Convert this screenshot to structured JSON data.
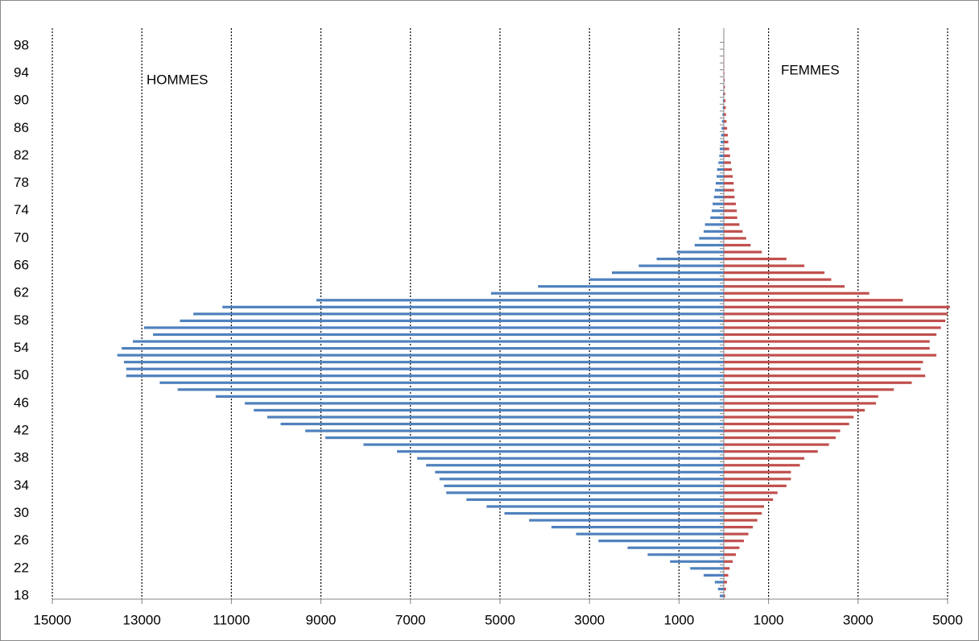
{
  "chart_data": {
    "type": "pyramid",
    "categories": [
      18,
      null,
      null,
      null,
      22,
      null,
      null,
      null,
      26,
      null,
      null,
      null,
      30,
      null,
      null,
      null,
      34,
      null,
      null,
      null,
      38,
      null,
      null,
      null,
      42,
      null,
      null,
      null,
      46,
      null,
      null,
      null,
      50,
      null,
      null,
      null,
      54,
      null,
      null,
      null,
      58,
      null,
      null,
      null,
      62,
      null,
      null,
      null,
      66,
      null,
      null,
      null,
      70,
      null,
      null,
      null,
      74,
      null,
      null,
      null,
      78,
      null,
      null,
      null,
      82,
      null,
      null,
      null,
      86,
      null,
      null,
      null,
      90,
      null,
      null,
      null,
      94,
      null,
      null,
      null,
      98,
      null
    ],
    "series": [
      {
        "name": "HOMMES",
        "color": "#4f81bd",
        "side": "left",
        "values": [
          90,
          130,
          200,
          450,
          750,
          1200,
          1700,
          2150,
          2800,
          3300,
          3850,
          4350,
          4900,
          5300,
          5750,
          6200,
          6250,
          6350,
          6450,
          6650,
          6850,
          7300,
          8050,
          8900,
          9350,
          9900,
          10200,
          10500,
          10700,
          11350,
          12200,
          12600,
          13350,
          13350,
          13400,
          13550,
          13450,
          13200,
          12750,
          12950,
          12150,
          11850,
          11200,
          9100,
          5200,
          4150,
          3000,
          2500,
          1900,
          1500,
          1050,
          650,
          550,
          450,
          420,
          300,
          270,
          250,
          220,
          200,
          180,
          160,
          150,
          120,
          100,
          90,
          70,
          60,
          50,
          40,
          30,
          25,
          20,
          15,
          10,
          8,
          5,
          5,
          3,
          2,
          2,
          1
        ]
      },
      {
        "name": "FEMMES",
        "color": "#c0504d",
        "side": "right",
        "values": [
          30,
          50,
          70,
          100,
          130,
          200,
          270,
          350,
          450,
          550,
          650,
          750,
          850,
          900,
          1100,
          1200,
          1400,
          1500,
          1500,
          1700,
          1800,
          2100,
          2350,
          2500,
          2600,
          2800,
          2900,
          3150,
          3400,
          3450,
          3800,
          4200,
          4500,
          4400,
          4450,
          4750,
          4600,
          4600,
          4750,
          4850,
          4950,
          5000,
          5050,
          4000,
          3250,
          2700,
          2400,
          2250,
          1800,
          1400,
          850,
          600,
          500,
          420,
          350,
          300,
          290,
          270,
          240,
          230,
          220,
          200,
          180,
          160,
          140,
          120,
          100,
          90,
          75,
          60,
          50,
          45,
          40,
          30,
          25,
          20,
          15,
          10,
          8,
          5,
          3,
          2
        ]
      }
    ],
    "xlim": [
      -15000,
      5000
    ],
    "xticks": [
      {
        "value": -15000,
        "label": "15000"
      },
      {
        "value": -13000,
        "label": "13000"
      },
      {
        "value": -11000,
        "label": "11000"
      },
      {
        "value": -9000,
        "label": "9000"
      },
      {
        "value": -7000,
        "label": "7000"
      },
      {
        "value": -5000,
        "label": "5000"
      },
      {
        "value": -3000,
        "label": "3000"
      },
      {
        "value": -1000,
        "label": "1000"
      },
      1000,
      3000,
      5000
    ],
    "grid": true
  }
}
